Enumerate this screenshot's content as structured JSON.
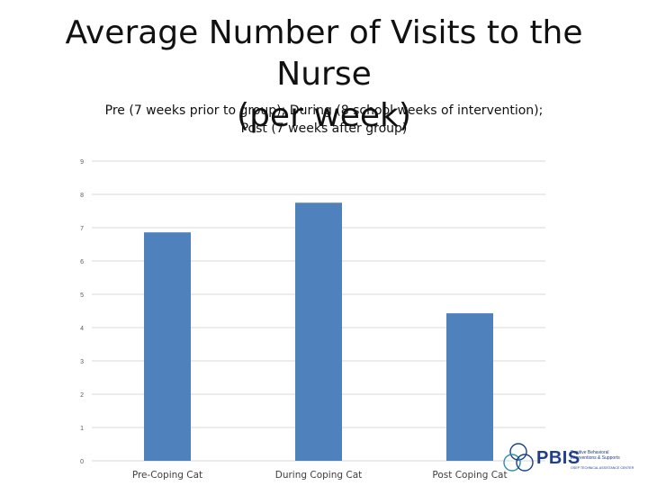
{
  "title_lines": [
    "Average Number of Visits to the Nurse",
    "(per week)"
  ],
  "subtitle_lines": [
    "Pre (7 weeks prior to group); During (8 school weeks of intervention);",
    "Post (7 weeks after group)"
  ],
  "colors": {
    "bar": "#4f81bd",
    "grid": "#d9d9d9",
    "tick_text": "#595959",
    "axis_text": "#404040"
  },
  "chart_data": {
    "type": "bar",
    "title": "Average Number of Visits to the Nurse (per week)",
    "subtitle": "Pre (7 weeks prior to group); During (8 school weeks of intervention); Post (7 weeks after group)",
    "categories": [
      "Pre-Coping Cat",
      "During Coping Cat",
      "Post Coping Cat"
    ],
    "values": [
      6.86,
      7.75,
      4.43
    ],
    "ylim": [
      0,
      9
    ],
    "yticks": [
      "0",
      "1",
      "2",
      "3",
      "4",
      "5",
      "6",
      "7",
      "8",
      "9"
    ],
    "grid": true,
    "xlabel": "",
    "ylabel": ""
  },
  "logo": {
    "brand": "PBIS",
    "line1": "Positive Behavioral",
    "line2": "Interventions & Supports",
    "tagline": "OSEP TECHNICAL ASSISTANCE CENTER"
  }
}
